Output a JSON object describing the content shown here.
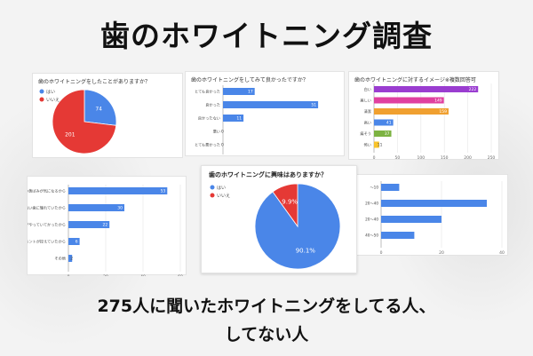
{
  "title": "歯のホワイトニング調査",
  "caption_line1": "275人に聞いたホワイトニングをしてる人、",
  "caption_line2": "してない人",
  "colors": {
    "blue": "#4a86e8",
    "red": "#e53935",
    "pink": "#e040a0",
    "orange": "#f0a030",
    "purple": "#9a3dd0",
    "green": "#7cb342",
    "yellow": "#f9c32a"
  },
  "chart_data": [
    {
      "type": "pie",
      "title": "歯のホワイトニングをしたことがありますか？",
      "labels": [
        "はい",
        "いいえ"
      ],
      "values": [
        74,
        201
      ],
      "value_labels": [
        "74",
        "201"
      ],
      "colors": [
        "#4a86e8",
        "#e53935"
      ]
    },
    {
      "type": "bar",
      "orientation": "horizontal",
      "title": "歯のホワイトニングをしてみて良かったですか？",
      "categories": [
        "とても良かった",
        "良かった",
        "良かったない",
        "悪い",
        "とても悪かった"
      ],
      "values": [
        17,
        51,
        11,
        0,
        0
      ],
      "value_labels": [
        "17",
        "51",
        "11",
        "0",
        "0"
      ],
      "xlim": [
        0,
        60
      ],
      "colors": [
        "#4a86e8"
      ]
    },
    {
      "type": "bar",
      "orientation": "horizontal",
      "title": "歯のホワイトニングに対するイメージ※複数回答可",
      "categories": [
        "白い",
        "美しい",
        "清潔",
        "高い",
        "痛そう",
        "怖い"
      ],
      "values": [
        222,
        149,
        159,
        41,
        37,
        11
      ],
      "value_labels": [
        "222",
        "149",
        "159",
        "41",
        "37",
        "11"
      ],
      "colors": [
        "#9a3dd0",
        "#e040a0",
        "#f0a030",
        "#4a86e8",
        "#7cb342",
        "#f9c32a"
      ],
      "xticks": [
        "0",
        "50",
        "100",
        "150",
        "200",
        "250"
      ],
      "xlim": [
        0,
        250
      ]
    },
    {
      "type": "bar",
      "orientation": "horizontal",
      "title": "",
      "categories": [
        "歯の黄ばみが気になるから",
        "白い歯に憧れていたから",
        "家族や友達がやっていてかったから",
        "結婚式や大事なイベントが控えていたから",
        "その他"
      ],
      "values": [
        53,
        30,
        22,
        6,
        2
      ],
      "value_labels": [
        "53",
        "30",
        "22",
        "6",
        "2"
      ],
      "xticks": [
        "0",
        "20",
        "40",
        "60"
      ],
      "xlim": [
        0,
        60
      ],
      "colors": [
        "#4a86e8"
      ]
    },
    {
      "type": "pie",
      "title": "歯のホワイトニングに興味はありますか？",
      "labels": [
        "はい",
        "いいえ"
      ],
      "values": [
        90.1,
        9.9
      ],
      "value_labels": [
        "90.1%",
        "9.9%"
      ],
      "colors": [
        "#4a86e8",
        "#e53935"
      ]
    },
    {
      "type": "bar",
      "orientation": "horizontal",
      "title": "",
      "categories": [
        "～10",
        "20～40",
        "20～40",
        "40～50"
      ],
      "values": [
        6,
        35,
        20,
        11
      ],
      "xticks": [
        "0",
        "20",
        "40"
      ],
      "xlim": [
        0,
        40
      ],
      "colors": [
        "#4a86e8"
      ]
    }
  ]
}
